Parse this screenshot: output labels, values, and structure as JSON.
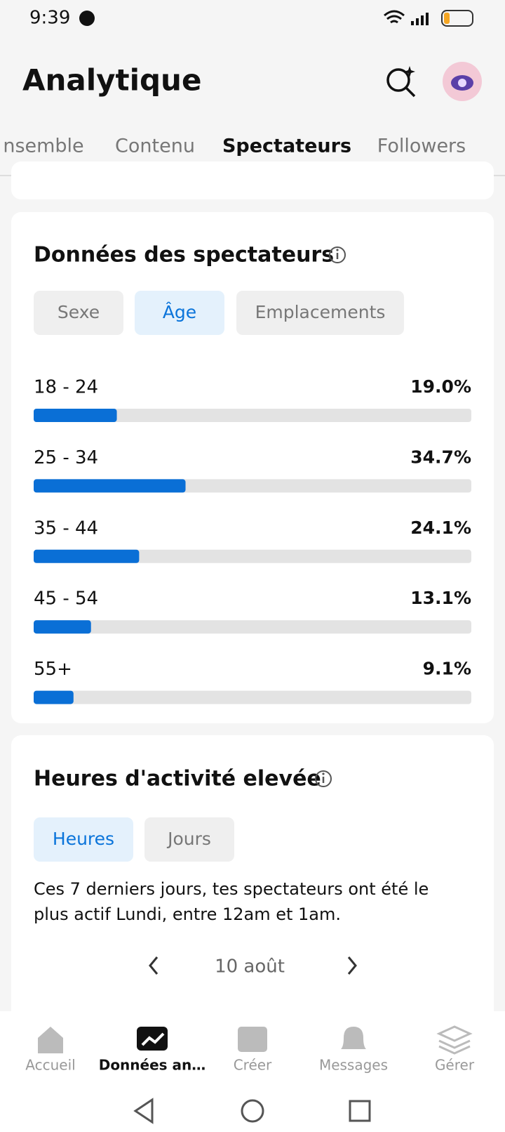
{
  "status_bar": {
    "time": "9:39"
  },
  "header": {
    "title": "Analytique"
  },
  "tabs": [
    "nsemble",
    "Contenu",
    "Spectateurs",
    "Followers"
  ],
  "viewer_data": {
    "title": "Données des spectateurs",
    "filters": [
      "Sexe",
      "Âge",
      "Emplacements"
    ],
    "xlim": [
      0,
      100
    ],
    "rows": [
      {
        "label": "18 - 24",
        "value": 19.0,
        "value_label": "19.0%"
      },
      {
        "label": "25 - 34",
        "value": 34.7,
        "value_label": "34.7%"
      },
      {
        "label": "35 - 44",
        "value": 24.1,
        "value_label": "24.1%"
      },
      {
        "label": "45 - 54",
        "value": 13.1,
        "value_label": "13.1%"
      },
      {
        "label": "55+",
        "value": 9.1,
        "value_label": "9.1%"
      }
    ]
  },
  "activity": {
    "title": "Heures d'activité elevée",
    "filters": [
      "Heures",
      "Jours"
    ],
    "text_line1": "Ces 7 derniers jours, tes spectateurs ont été le",
    "text_line2": "plus actif Lundi, entre 12am et 1am.",
    "date": "10 août"
  },
  "bottom_nav": [
    "Accueil",
    "Données an…",
    "Créer",
    "Messages",
    "Gérer"
  ]
}
